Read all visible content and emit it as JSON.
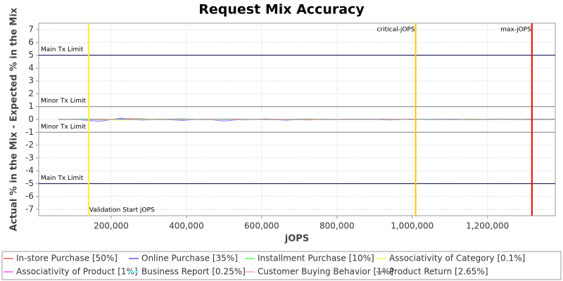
{
  "chart_data": {
    "type": "line",
    "title": "Request Mix Accuracy",
    "x_label": "jOPS",
    "y_label": "Actual % in the Mix - Expected % in the Mix",
    "xlim": [
      7500,
      1380000
    ],
    "ylim": [
      -7.5,
      7.5
    ],
    "xticks": [
      {
        "value": 200000,
        "label": "200,000"
      },
      {
        "value": 400000,
        "label": "400,000"
      },
      {
        "value": 600000,
        "label": "600,000"
      },
      {
        "value": 800000,
        "label": "800,000"
      },
      {
        "value": 1000000,
        "label": "1,000,000"
      },
      {
        "value": 1200000,
        "label": "1,200,000"
      }
    ],
    "yticks": [
      -7,
      -6,
      -5,
      -4,
      -3,
      -2,
      -1,
      0,
      1,
      2,
      3,
      4,
      5,
      6,
      7
    ],
    "grid": true,
    "x": [
      60000,
      115000,
      170000,
      225000,
      280000,
      335000,
      390000,
      445000,
      500000,
      555000,
      610000,
      665000,
      720000,
      775000,
      830000,
      885000,
      940000,
      995000,
      1050000,
      1105000,
      1160000,
      1215000,
      1270000,
      1325000,
      1380000
    ],
    "series": [
      {
        "name": "In-store Purchase [50%]",
        "color": "#ff8080",
        "values": [
          0,
          0.02,
          -0.03,
          0.05,
          0.08,
          -0.04,
          0.03,
          -0.02,
          0.01,
          0.04,
          -0.03,
          0.02,
          -0.05,
          0.03,
          0.01,
          -0.02,
          0.04,
          -0.01,
          0.02,
          0.03,
          -0.02,
          0.01,
          0.02,
          0.05,
          -0.03
        ]
      },
      {
        "name": "Online Purchase [35%]",
        "color": "#8080ff",
        "values": [
          0.01,
          -0.03,
          -0.15,
          0.1,
          -0.05,
          0.02,
          -0.08,
          0.04,
          -0.12,
          0.03,
          0.02,
          -0.06,
          0.04,
          -0.02,
          0.03,
          0.01,
          -0.04,
          0.02,
          0.01,
          -0.03,
          0.02,
          0.01,
          -0.02,
          0.03,
          0.01
        ]
      },
      {
        "name": "Installment Purchase [10%]",
        "color": "#80ff80",
        "values": [
          -0.02,
          0.03,
          0.05,
          -0.06,
          0.04,
          -0.03,
          0.06,
          -0.02,
          0.03,
          -0.04,
          0.05,
          -0.01,
          0.02,
          0.04,
          -0.03,
          0.02,
          -0.02,
          0.03,
          -0.01,
          0.02,
          0.04,
          -0.02,
          0.01,
          -0.03,
          0.02
        ]
      },
      {
        "name": "Associativity of Category [0.1%]",
        "color": "#ffff80",
        "values": [
          0,
          -0.01,
          0.02,
          -0.08,
          0.03,
          0.05,
          -0.02,
          0.01,
          -0.04,
          0.02,
          0.01,
          -0.02,
          0.03,
          0.01,
          0.02,
          -0.01,
          0.01,
          0.02,
          -0.02,
          0.01,
          0,
          0.02,
          -0.01,
          0.01,
          0
        ]
      },
      {
        "name": "Associativity of Product [1%]",
        "color": "#ff80ff",
        "values": [
          0.01,
          0,
          -0.02,
          0.03,
          -0.01,
          0.02,
          -0.03,
          0.02,
          0.01,
          -0.02,
          0.03,
          0.01,
          -0.01,
          0.02,
          -0.02,
          0.01,
          0.02,
          -0.01,
          0.01,
          0.02,
          -0.01,
          0.02,
          0.01,
          -0.02,
          0.01
        ]
      },
      {
        "name": "Business Report [0.25%]",
        "color": "#80ffff",
        "values": [
          -0.01,
          0.02,
          0.01,
          -0.02,
          0.02,
          -0.01,
          0.01,
          0.03,
          -0.02,
          0.01,
          -0.01,
          0.02,
          0.01,
          -0.02,
          0.01,
          0.02,
          -0.01,
          0.01,
          0.02,
          -0.01,
          0.01,
          -0.02,
          0.02,
          0.01,
          -0.01
        ]
      },
      {
        "name": "Customer Buying Behavior [1%]",
        "color": "#ffc0c0",
        "values": [
          0.02,
          -0.01,
          0.03,
          0.01,
          -0.02,
          0.04,
          -0.01,
          0.02,
          0.03,
          -0.02,
          0.01,
          0.03,
          -0.01,
          0.02,
          0.01,
          -0.03,
          0.02,
          0.01,
          -0.02,
          0.03,
          0.01,
          -0.01,
          0.02,
          -0.01,
          0.02
        ]
      },
      {
        "name": "Product Return [2.65%]",
        "color": "#909090",
        "values": [
          -0.01,
          0.01,
          -0.02,
          0.02,
          -0.03,
          0.01,
          0.02,
          -0.01,
          0.02,
          -0.02,
          0.01,
          -0.01,
          0.02,
          -0.02,
          0.01,
          0.01,
          -0.01,
          0.02,
          -0.01,
          0.01,
          -0.02,
          0.01,
          0.01,
          -0.02,
          0.01
        ]
      }
    ],
    "limits": [
      {
        "label": "Main Tx Limit",
        "value": 5,
        "color": "#000040"
      },
      {
        "label": "Minor Tx Limit",
        "value": 1,
        "color": "#808080"
      },
      {
        "label": "Minor Tx Limit",
        "value": -1,
        "color": "#808080"
      },
      {
        "label": "Main Tx Limit",
        "value": -5,
        "color": "#000040"
      }
    ],
    "markers": [
      {
        "label": "Validation Start jOPS",
        "value": 140000,
        "color": "#ffee33"
      },
      {
        "label": "critical-jOPS",
        "value": 1009000,
        "color": "#ffc800"
      },
      {
        "label": "max-jOPS",
        "value": 1318000,
        "color": "#ee0000"
      }
    ]
  }
}
